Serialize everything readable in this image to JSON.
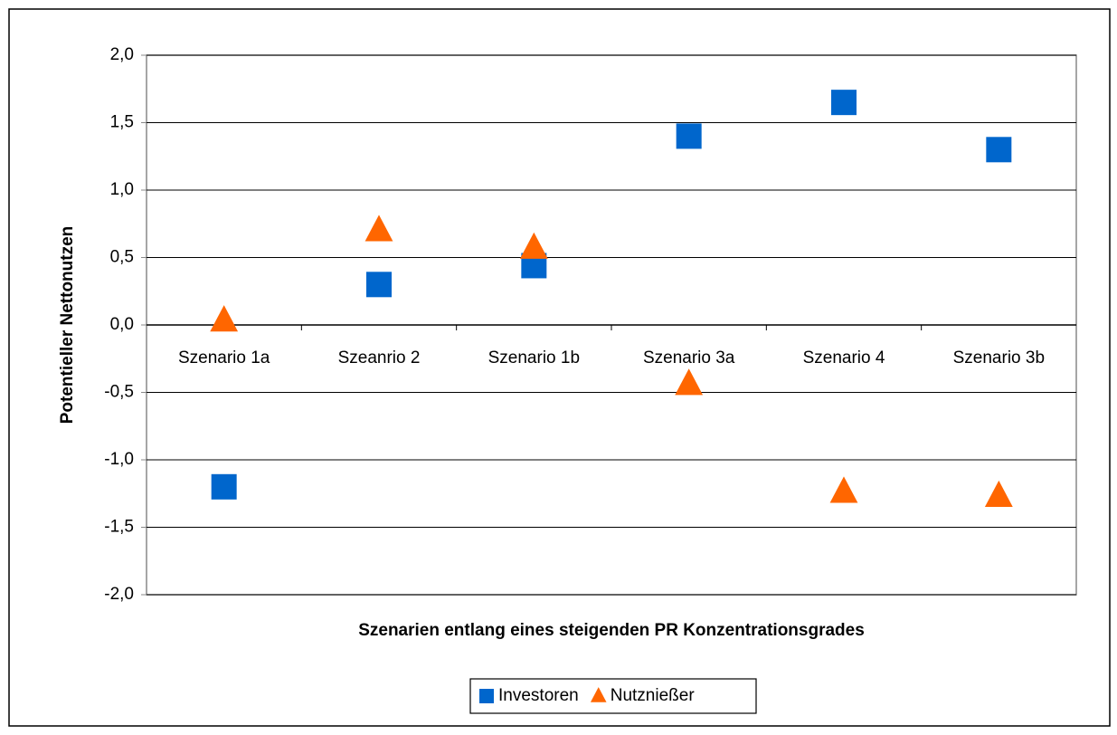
{
  "chart_data": {
    "type": "scatter",
    "categories": [
      "Szenario 1a",
      "Szeanrio 2",
      "Szenario 1b",
      "Szenario 3a",
      "Szenario 4",
      "Szenario 3b"
    ],
    "series": [
      {
        "name": "Investoren",
        "color": "#0066cc",
        "marker": "square",
        "values": [
          -1.2,
          0.3,
          0.44,
          1.4,
          1.65,
          1.3
        ]
      },
      {
        "name": "Nutznießer",
        "color": "#ff6600",
        "marker": "triangle",
        "values": [
          0.03,
          0.7,
          0.57,
          -0.44,
          -1.24,
          -1.27
        ]
      }
    ],
    "x_label": "Szenarien entlang eines steigenden PR Konzentrationsgrades",
    "y_label": "Potentieller Nettonutzen",
    "ylim": [
      -2,
      2
    ],
    "yticks": [
      {
        "value": -2,
        "label": "-2,0"
      },
      {
        "value": -1.5,
        "label": "-1,5"
      },
      {
        "value": -1,
        "label": "-1,0"
      },
      {
        "value": -0.5,
        "label": "-0,5"
      },
      {
        "value": 0,
        "label": "0,0"
      },
      {
        "value": 0.5,
        "label": "0,5"
      },
      {
        "value": 1,
        "label": "1,0"
      },
      {
        "value": 1.5,
        "label": "1,5"
      },
      {
        "value": 2,
        "label": "2,0"
      }
    ],
    "grid": true,
    "legend": "bottom"
  }
}
